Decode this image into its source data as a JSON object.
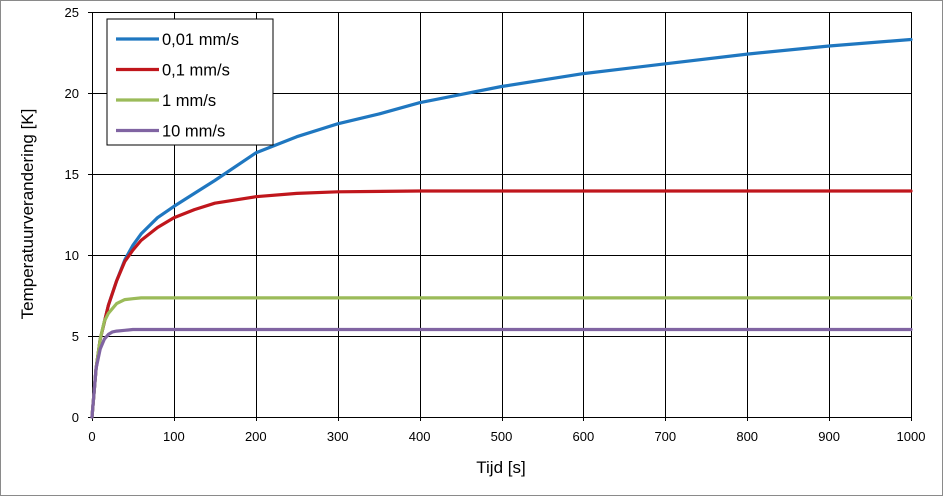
{
  "chart_data": {
    "type": "line",
    "title": "",
    "xlabel": "Tijd [s]",
    "ylabel": "Temperatuurverandering [K]",
    "xlim": [
      0,
      1000
    ],
    "ylim": [
      0,
      25
    ],
    "x_ticks": [
      0,
      100,
      200,
      300,
      400,
      500,
      600,
      700,
      800,
      900,
      1000
    ],
    "y_ticks": [
      0,
      5,
      10,
      15,
      20,
      25
    ],
    "grid": true,
    "legend_position": "top-left",
    "series": [
      {
        "name": "0,01 mm/s",
        "color": "#1f77c0",
        "x": [
          0,
          5,
          10,
          20,
          30,
          40,
          50,
          60,
          80,
          100,
          125,
          150,
          200,
          250,
          300,
          350,
          400,
          450,
          500,
          600,
          700,
          800,
          900,
          1000
        ],
        "y": [
          0,
          3.0,
          4.8,
          6.9,
          8.4,
          9.7,
          10.6,
          11.3,
          12.3,
          13.0,
          13.8,
          14.6,
          16.3,
          17.3,
          18.1,
          18.7,
          19.4,
          19.9,
          20.4,
          21.2,
          21.8,
          22.4,
          22.9,
          23.3
        ]
      },
      {
        "name": "0,1 mm/s",
        "color": "#c0161c",
        "x": [
          0,
          5,
          10,
          20,
          30,
          40,
          50,
          60,
          80,
          100,
          125,
          150,
          200,
          250,
          300,
          400,
          500,
          600,
          700,
          800,
          900,
          1000
        ],
        "y": [
          0,
          3.0,
          4.8,
          6.9,
          8.4,
          9.6,
          10.3,
          10.9,
          11.7,
          12.3,
          12.8,
          13.2,
          13.6,
          13.8,
          13.9,
          13.95,
          13.95,
          13.95,
          13.95,
          13.95,
          13.95,
          13.95
        ]
      },
      {
        "name": "1 mm/s",
        "color": "#9bbb59",
        "x": [
          0,
          5,
          10,
          15,
          20,
          30,
          40,
          50,
          60,
          80,
          100,
          200,
          300,
          400,
          500,
          600,
          700,
          800,
          900,
          1000
        ],
        "y": [
          0,
          3.0,
          4.8,
          5.9,
          6.4,
          7.0,
          7.25,
          7.3,
          7.35,
          7.35,
          7.35,
          7.35,
          7.35,
          7.35,
          7.35,
          7.35,
          7.35,
          7.35,
          7.35,
          7.35
        ]
      },
      {
        "name": "10 mm/s",
        "color": "#8064a2",
        "x": [
          0,
          5,
          10,
          15,
          20,
          25,
          30,
          40,
          50,
          60,
          80,
          100,
          200,
          300,
          400,
          500,
          600,
          700,
          800,
          900,
          1000
        ],
        "y": [
          0,
          3.0,
          4.2,
          4.8,
          5.1,
          5.25,
          5.3,
          5.35,
          5.4,
          5.4,
          5.4,
          5.4,
          5.4,
          5.4,
          5.4,
          5.4,
          5.4,
          5.4,
          5.4,
          5.4,
          5.4
        ]
      }
    ]
  }
}
